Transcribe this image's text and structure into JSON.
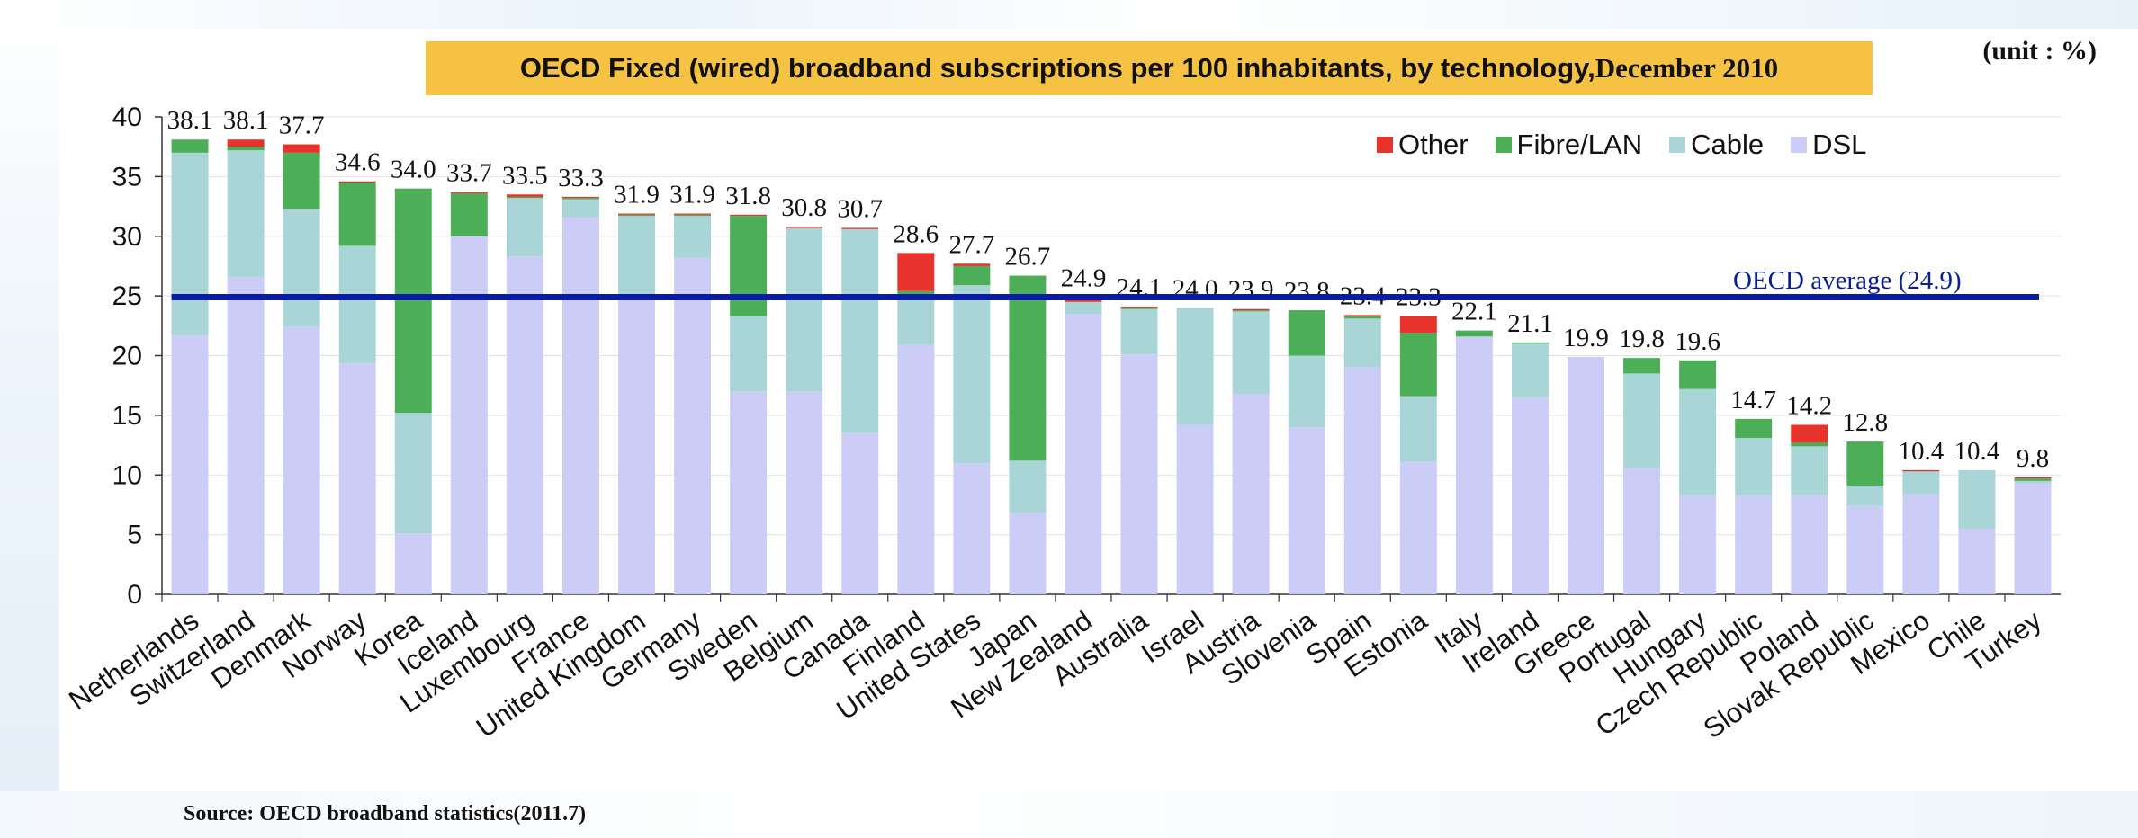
{
  "title": {
    "main": "OECD Fixed (wired) broadband subscriptions per 100 inhabitants, by technology, ",
    "date": "December 2010"
  },
  "unit_label": "(unit : %)",
  "source": "Source: OECD broadband statistics(2011.7)",
  "average": {
    "label": "OECD average (24.9)",
    "value": 24.9,
    "color": "#0a1ba8"
  },
  "colors": {
    "Other": "#e8322c",
    "Fibre/LAN": "#4caf58",
    "Cable": "#a9d5d7",
    "DSL": "#cbcdf6"
  },
  "chart_data": {
    "type": "bar",
    "stacked": true,
    "ylim": [
      0,
      40
    ],
    "yticks": [
      0,
      5,
      10,
      15,
      20,
      25,
      30,
      35,
      40
    ],
    "grid": true,
    "legend_position": "top-right",
    "categories": [
      "Netherlands",
      "Switzerland",
      "Denmark",
      "Norway",
      "Korea",
      "Iceland",
      "Luxembourg",
      "France",
      "United Kingdom",
      "Germany",
      "Sweden",
      "Belgium",
      "Canada",
      "Finland",
      "United States",
      "Japan",
      "New Zealand",
      "Australia",
      "Israel",
      "Austria",
      "Slovenia",
      "Spain",
      "Estonia",
      "Italy",
      "Ireland",
      "Greece",
      "Portugal",
      "Hungary",
      "Czech Republic",
      "Poland",
      "Slovak Republic",
      "Mexico",
      "Chile",
      "Turkey"
    ],
    "totals": [
      "38.1",
      "38.1",
      "37.7",
      "34.6",
      "34.0",
      "33.7",
      "33.5",
      "33.3",
      "31.9",
      "31.9",
      "31.8",
      "30.8",
      "30.7",
      "28.6",
      "27.7",
      "26.7",
      "24.9",
      "24.1",
      "24.0",
      "23.9",
      "23.8",
      "23.4",
      "23.3",
      "22.1",
      "21.1",
      "19.9",
      "19.8",
      "19.6",
      "14.7",
      "14.2",
      "12.8",
      "10.4",
      "10.4",
      "9.8"
    ],
    "series": [
      {
        "name": "DSL",
        "values": [
          21.7,
          26.6,
          22.4,
          19.4,
          5.1,
          30.0,
          28.3,
          31.6,
          25.0,
          28.2,
          17.0,
          17.0,
          13.5,
          20.9,
          11.0,
          6.8,
          23.5,
          20.1,
          14.2,
          16.8,
          14.0,
          19.0,
          11.1,
          21.6,
          16.5,
          19.9,
          10.6,
          8.3,
          8.3,
          8.3,
          7.4,
          8.4,
          5.5,
          9.3
        ]
      },
      {
        "name": "Cable",
        "values": [
          15.3,
          10.6,
          9.9,
          9.8,
          10.1,
          0.0,
          4.9,
          1.5,
          6.7,
          3.5,
          6.3,
          13.7,
          17.1,
          3.9,
          14.9,
          4.4,
          1.0,
          3.8,
          9.8,
          6.9,
          6.0,
          4.1,
          5.5,
          0.0,
          4.5,
          0.0,
          7.9,
          8.9,
          4.8,
          4.1,
          1.7,
          1.9,
          4.9,
          0.2
        ]
      },
      {
        "name": "Fibre/LAN",
        "values": [
          1.1,
          0.3,
          4.7,
          5.3,
          18.8,
          3.6,
          0.1,
          0.1,
          0.1,
          0.1,
          8.4,
          0.0,
          0.0,
          0.6,
          1.6,
          15.5,
          0.0,
          0.1,
          0.0,
          0.1,
          3.8,
          0.2,
          5.3,
          0.5,
          0.1,
          0.0,
          1.3,
          2.4,
          1.6,
          0.3,
          3.7,
          0.0,
          0.0,
          0.2
        ]
      },
      {
        "name": "Other",
        "values": [
          0.0,
          0.6,
          0.7,
          0.1,
          0.0,
          0.1,
          0.2,
          0.1,
          0.1,
          0.1,
          0.1,
          0.1,
          0.1,
          3.2,
          0.2,
          0.0,
          0.4,
          0.1,
          0.0,
          0.1,
          0.0,
          0.1,
          1.4,
          0.0,
          0.0,
          0.0,
          0.0,
          0.0,
          0.0,
          1.5,
          0.0,
          0.1,
          0.0,
          0.1
        ]
      }
    ]
  }
}
